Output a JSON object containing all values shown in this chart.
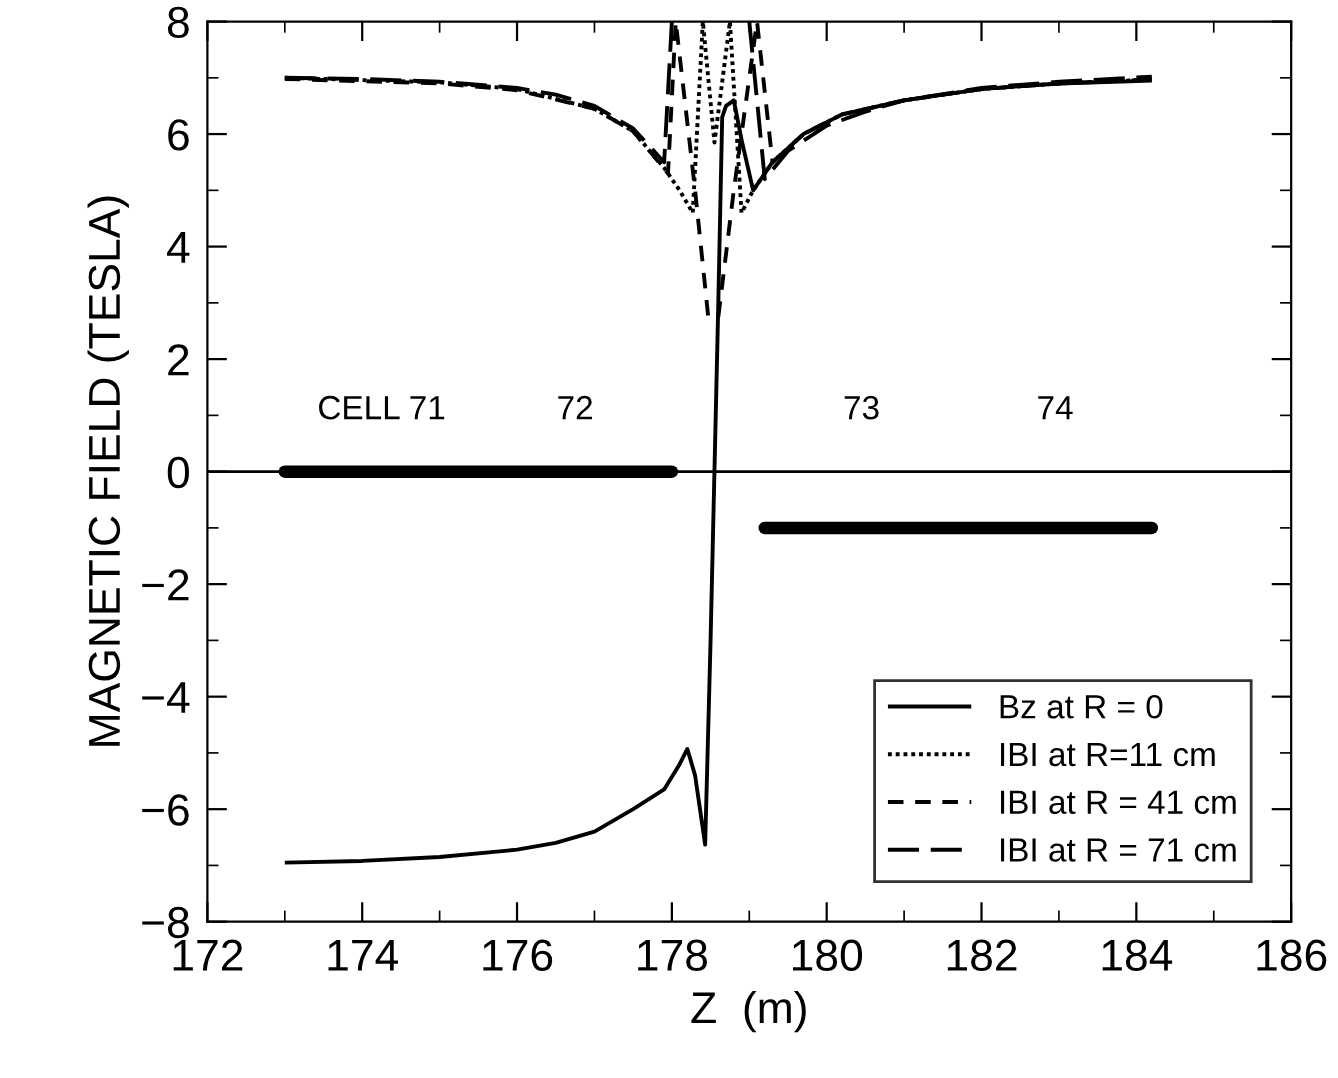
{
  "chart_data": {
    "type": "line",
    "xlabel": "Z  (m)",
    "ylabel": "MAGNETIC FIELD (TESLA)",
    "xlim": [
      172,
      186
    ],
    "xticks": [
      172,
      174,
      176,
      178,
      180,
      182,
      184,
      186
    ],
    "ylim": [
      -8,
      8
    ],
    "yticks": [
      -8,
      -6,
      -4,
      -2,
      0,
      2,
      4,
      6,
      8
    ],
    "grid": false,
    "legend": "bottom right",
    "ref_lines": [
      {
        "axis": "y",
        "value": 0,
        "color": "#000000"
      }
    ],
    "annotations": [
      "CELL 71",
      "72",
      "73",
      "74"
    ],
    "series": [
      {
        "name": "Bz at R = 0",
        "color": "#000000",
        "line_style": "solid",
        "x": [
          173,
          174,
          175,
          176,
          176.5,
          177,
          177.5,
          177.9,
          178.1,
          178.2,
          178.3,
          178.43,
          178.5,
          178.55,
          178.6,
          178.65,
          178.7,
          178.8,
          178.9,
          179.05,
          179.3,
          179.7,
          180.2,
          181,
          182,
          183,
          184.2
        ],
        "values": [
          -6.95,
          -6.92,
          -6.85,
          -6.72,
          -6.6,
          -6.4,
          -6.0,
          -5.65,
          -5.2,
          -4.93,
          -5.4,
          -6.63,
          -3,
          0,
          3,
          6.3,
          6.5,
          6.6,
          5.9,
          5.0,
          5.5,
          6.0,
          6.35,
          6.6,
          6.8,
          6.9,
          6.95
        ]
      },
      {
        "name": "IBI at R=11 cm",
        "color": "#000000",
        "line_style": "dotted",
        "x": [
          173,
          175,
          176,
          177,
          177.5,
          177.9,
          178.1,
          178.27,
          178.4,
          178.55,
          178.75,
          178.9,
          179.05,
          179.3,
          179.7,
          180.2,
          181,
          182,
          183,
          184.2
        ],
        "values": [
          7.0,
          6.92,
          6.8,
          6.45,
          6.05,
          5.4,
          5.0,
          4.6,
          8,
          5.85,
          8,
          4.6,
          5.0,
          5.5,
          6.0,
          6.35,
          6.6,
          6.8,
          6.9,
          6.97
        ]
      },
      {
        "name": "IBI at R = 41 cm",
        "color": "#000000",
        "line_style": "dashed",
        "x": [
          173,
          175,
          176,
          177,
          177.5,
          177.95,
          178.05,
          178.3,
          178.47,
          178.6,
          178.8,
          179.1,
          179.3,
          179.7,
          180.2,
          181,
          182,
          183,
          184.2
        ],
        "values": [
          6.98,
          6.9,
          6.78,
          6.45,
          6.05,
          5.3,
          8,
          5.0,
          2.75,
          2.75,
          5.0,
          8,
          5.5,
          6.0,
          6.35,
          6.6,
          6.8,
          6.9,
          6.97
        ]
      },
      {
        "name": "IBI at R = 71 cm",
        "color": "#000000",
        "line_style": "longdash",
        "x": [
          173,
          174,
          175,
          176,
          176.5,
          177,
          177.5,
          177.9,
          178.0,
          178.5,
          179.0,
          179.2,
          179.5,
          180,
          180.5,
          181,
          182,
          183,
          184.2
        ],
        "values": [
          7.0,
          6.98,
          6.93,
          6.82,
          6.7,
          6.5,
          6.1,
          5.5,
          8,
          null,
          8,
          5.2,
          5.7,
          6.15,
          6.4,
          6.6,
          6.82,
          6.93,
          7.02
        ]
      },
      {
        "color": "#000000",
        "line_style": "solid",
        "x": [
          173,
          178
        ],
        "values": [
          0,
          0
        ]
      },
      {
        "color": "#000000",
        "line_style": "solid",
        "x": [
          179.2,
          184.2
        ],
        "values": [
          -1,
          -1
        ]
      }
    ]
  }
}
